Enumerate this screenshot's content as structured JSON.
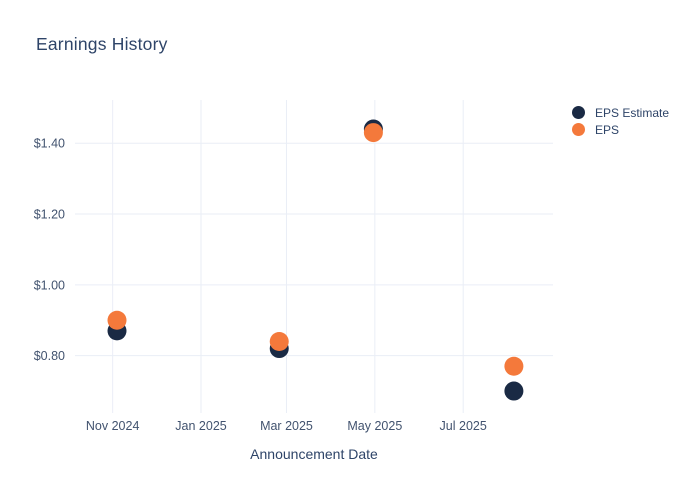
{
  "chart_data": {
    "type": "scatter",
    "title": "Earnings History",
    "xlabel": "Announcement Date",
    "ylabel": "",
    "grid": true,
    "legend_position": "top-right",
    "x_ticks": [
      {
        "date": "2024-11-01",
        "label": "Nov 2024"
      },
      {
        "date": "2025-01-01",
        "label": "Jan 2025"
      },
      {
        "date": "2025-03-01",
        "label": "Mar 2025"
      },
      {
        "date": "2025-05-01",
        "label": "May 2025"
      },
      {
        "date": "2025-07-01",
        "label": "Jul 2025"
      }
    ],
    "y_ticks": [
      {
        "value": 0.8,
        "label": "$0.80"
      },
      {
        "value": 1.0,
        "label": "$1.00"
      },
      {
        "value": 1.2,
        "label": "$1.20"
      },
      {
        "value": 1.4,
        "label": "$1.40"
      }
    ],
    "x_range": [
      "2024-10-06",
      "2025-09-01"
    ],
    "y_range": [
      0.638,
      1.522
    ],
    "series": [
      {
        "name": "EPS Estimate",
        "color": "#1a2a44",
        "points": [
          {
            "x": "2024-11-04",
            "y": 0.87
          },
          {
            "x": "2025-02-24",
            "y": 0.82
          },
          {
            "x": "2025-04-30",
            "y": 1.44
          },
          {
            "x": "2025-08-05",
            "y": 0.7
          }
        ]
      },
      {
        "name": "EPS",
        "color": "#f4793b",
        "points": [
          {
            "x": "2024-11-04",
            "y": 0.9
          },
          {
            "x": "2025-02-24",
            "y": 0.84
          },
          {
            "x": "2025-04-30",
            "y": 1.43
          },
          {
            "x": "2025-08-05",
            "y": 0.77
          }
        ]
      }
    ]
  }
}
